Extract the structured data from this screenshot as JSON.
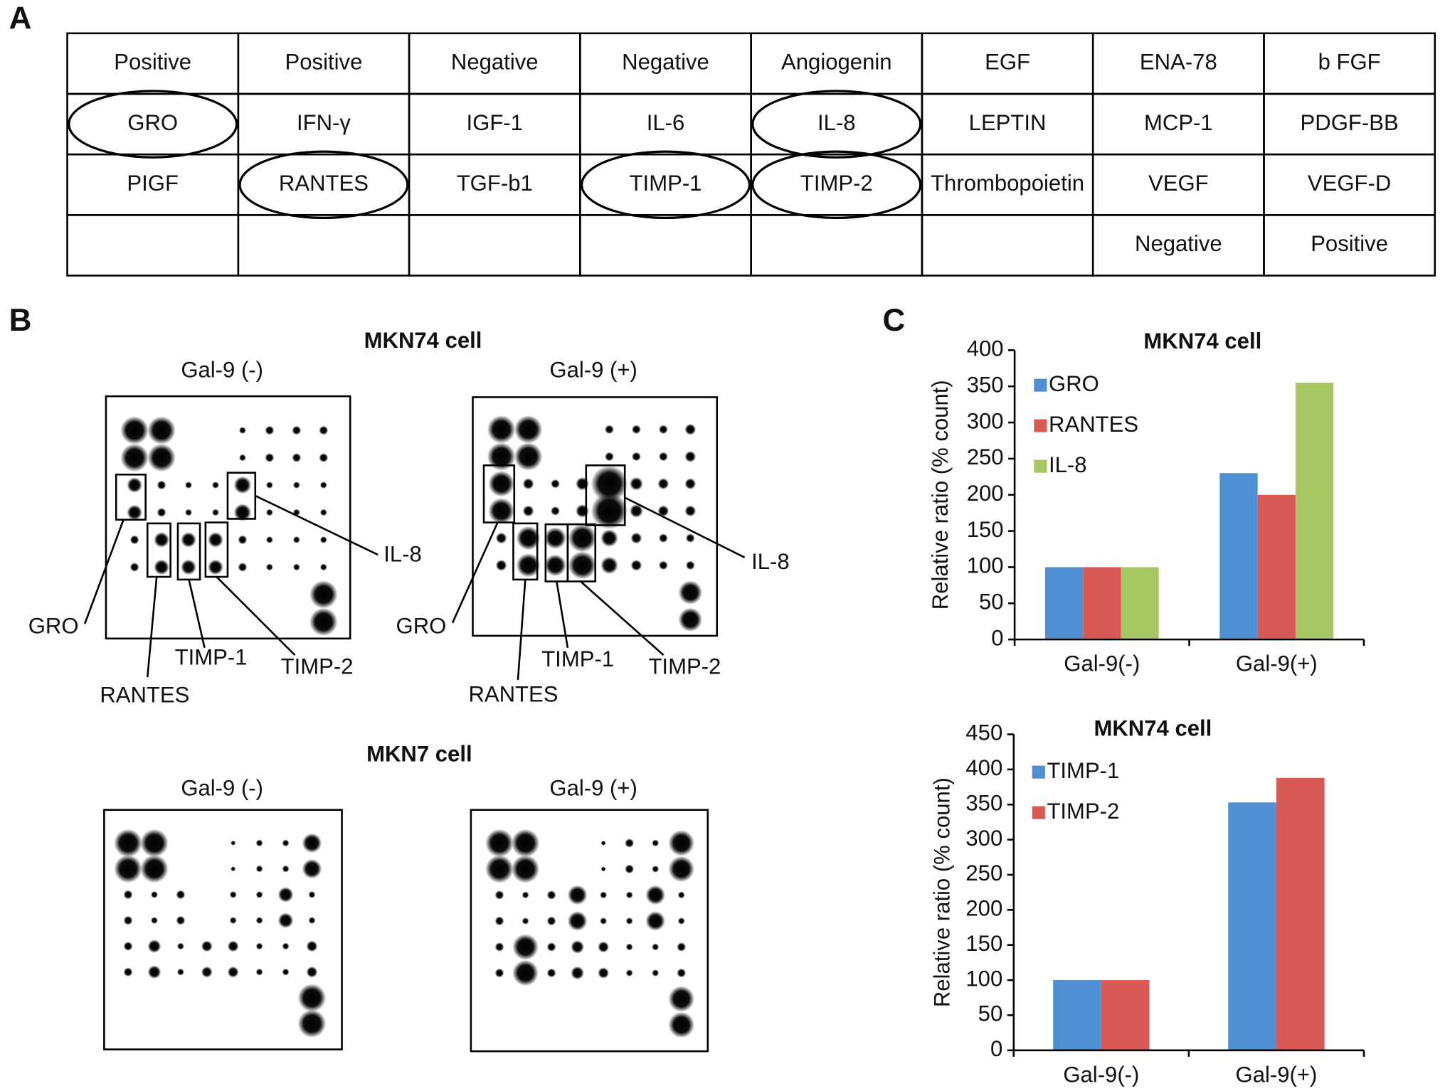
{
  "panel_labels": [
    "A",
    "B",
    "C"
  ],
  "table": {
    "rows": [
      [
        "Positive",
        "Positive",
        "Negative",
        "Negative",
        "Angiogenin",
        "EGF",
        "ENA-78",
        "b FGF"
      ],
      [
        "GRO",
        "IFN-γ",
        "IGF-1",
        "IL-6",
        "IL-8",
        "LEPTIN",
        "MCP-1",
        "PDGF-BB"
      ],
      [
        "PIGF",
        "RANTES",
        "TGF-b1",
        "TIMP-1",
        "TIMP-2",
        "Thrombopoietin",
        "VEGF",
        "VEGF-D"
      ],
      [
        null,
        null,
        null,
        null,
        null,
        null,
        "Negative",
        "Positive"
      ]
    ]
  },
  "blots": {
    "groups": [
      {
        "title": "MKN74 cell",
        "conditions": [
          "Gal-9 (-)",
          "Gal-9 (+)"
        ],
        "callouts": [
          "GRO",
          "RANTES",
          "TIMP-1",
          "TIMP-2",
          "IL-8"
        ]
      },
      {
        "title": "MKN7 cell",
        "conditions": [
          "Gal-9 (-)",
          "Gal-9 (+)"
        ]
      }
    ]
  },
  "chart_data": [
    {
      "type": "bar",
      "title": "MKN74 cell",
      "ylabel": "Relative ratio (% count)",
      "categories": [
        "Gal-9(-)",
        "Gal-9(+)"
      ],
      "series": [
        {
          "name": "GRO",
          "color": "#4f8fd3",
          "values": [
            100,
            230
          ]
        },
        {
          "name": "RANTES",
          "color": "#d95a55",
          "values": [
            100,
            200
          ]
        },
        {
          "name": "IL-8",
          "color": "#a6c764",
          "values": [
            100,
            355
          ]
        }
      ],
      "ylim": [
        0,
        400
      ],
      "yticks": [
        0,
        50,
        100,
        150,
        200,
        250,
        300,
        350,
        400
      ],
      "legend": "upper left"
    },
    {
      "type": "bar",
      "title": "MKN74 cell",
      "ylabel": "Relative ratio (% count)",
      "categories": [
        "Gal-9(-)",
        "Gal-9(+)"
      ],
      "series": [
        {
          "name": "TIMP-1",
          "color": "#4f8fd3",
          "values": [
            100,
            353
          ]
        },
        {
          "name": "TIMP-2",
          "color": "#d95a55",
          "values": [
            100,
            388
          ]
        }
      ],
      "ylim": [
        0,
        450
      ],
      "yticks": [
        0,
        50,
        100,
        150,
        200,
        250,
        300,
        350,
        400,
        450
      ],
      "legend": "upper left"
    }
  ]
}
